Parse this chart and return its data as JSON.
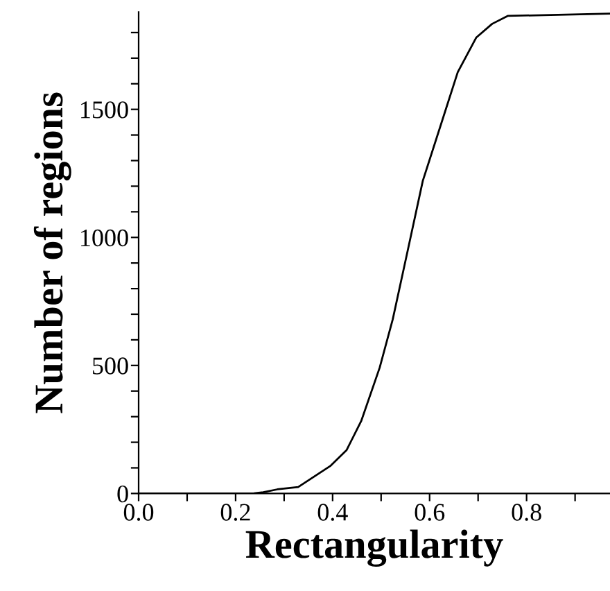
{
  "chart_data": {
    "type": "line",
    "xlabel": "Rectangularity",
    "ylabel": "Number of regions",
    "x": [
      0.0,
      0.2,
      0.238,
      0.257,
      0.286,
      0.329,
      0.395,
      0.429,
      0.459,
      0.497,
      0.524,
      0.555,
      0.586,
      0.629,
      0.658,
      0.696,
      0.729,
      0.761,
      0.972
    ],
    "series": [
      {
        "color": "#000000",
        "values": [
          0,
          0,
          1,
          5,
          16,
          25,
          107,
          170,
          283,
          491,
          680,
          950,
          1221,
          1474,
          1645,
          1780,
          1834,
          1865,
          1874
        ]
      }
    ],
    "xlim": [
      0.0,
      0.972
    ],
    "ylim": [
      0,
      1880
    ],
    "xticks": [
      {
        "value": 0.0,
        "label": "0.0"
      },
      {
        "value": 0.1,
        "label": null
      },
      0.2,
      {
        "value": 0.3,
        "label": null
      },
      0.4,
      {
        "value": 0.5,
        "label": null
      },
      0.6,
      {
        "value": 0.7,
        "label": null
      },
      0.8,
      {
        "value": 0.9,
        "label": null
      }
    ],
    "yticks": [
      0,
      {
        "value": 100,
        "label": null
      },
      {
        "value": 200,
        "label": null
      },
      {
        "value": 300,
        "label": null
      },
      {
        "value": 400,
        "label": null
      },
      500,
      {
        "value": 600,
        "label": null
      },
      {
        "value": 700,
        "label": null
      },
      {
        "value": 800,
        "label": null
      },
      {
        "value": 900,
        "label": null
      },
      1000,
      {
        "value": 1100,
        "label": null
      },
      {
        "value": 1200,
        "label": null
      },
      {
        "value": 1300,
        "label": null
      },
      {
        "value": 1400,
        "label": null
      },
      1500,
      {
        "value": 1600,
        "label": null
      },
      {
        "value": 1700,
        "label": null
      },
      {
        "value": 1800,
        "label": null
      }
    ],
    "grid": false,
    "legend": false,
    "marker": "none",
    "line_style": "solid"
  }
}
